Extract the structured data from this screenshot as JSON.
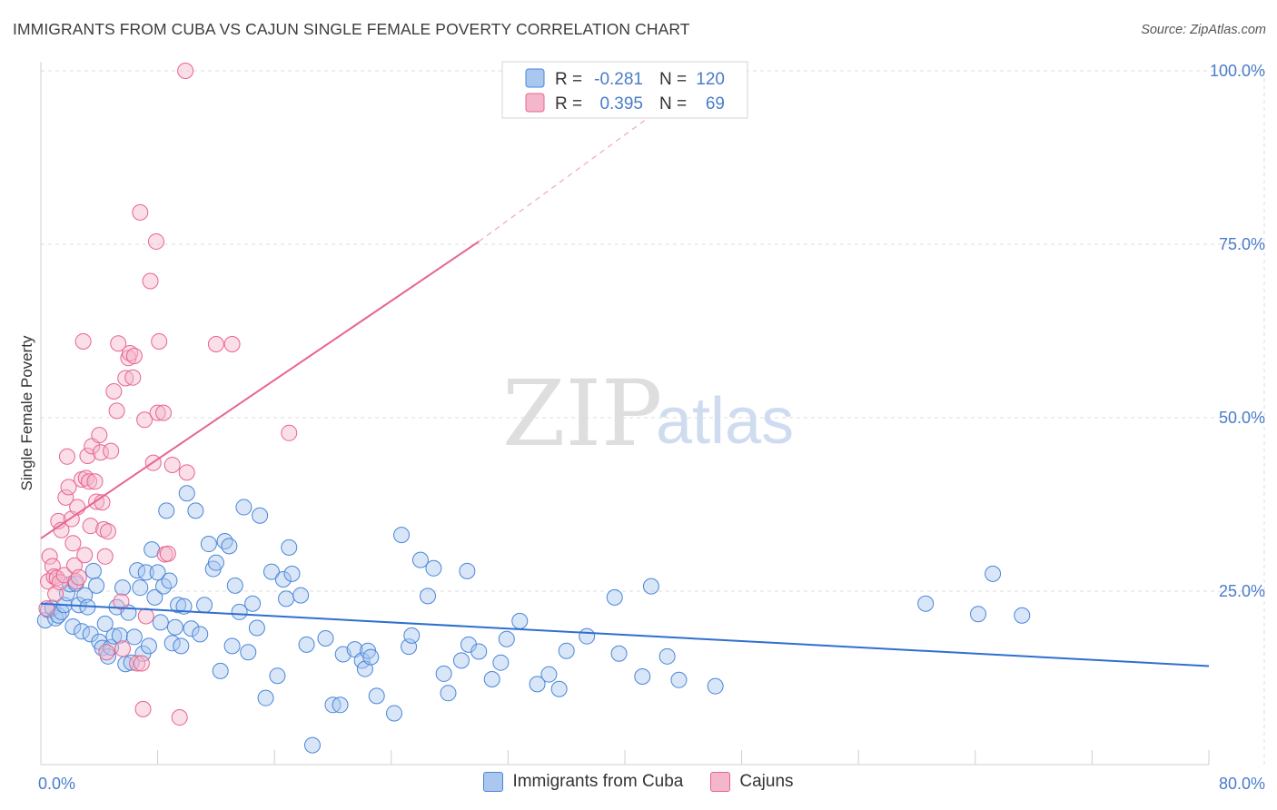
{
  "header": {
    "title": "IMMIGRANTS FROM CUBA VS CAJUN SINGLE FEMALE POVERTY CORRELATION CHART",
    "source": "Source: ZipAtlas.com"
  },
  "colors": {
    "blue": "#4a86d8",
    "blue_fill": "#a9c7ef",
    "pink": "#e8648e",
    "pink_fill": "#f4b6cb",
    "tick": "#4a7cc9",
    "grid": "#dddddd"
  },
  "watermark": {
    "part1": "ZIP",
    "part2": "atlas"
  },
  "chart_data": {
    "type": "scatter",
    "xlabel": "",
    "ylabel": "Single Female Poverty",
    "xlim": [
      0,
      80
    ],
    "ylim": [
      0,
      100
    ],
    "x_tick_labels": [
      "0.0%",
      "80.0%"
    ],
    "y_ticks": [
      25,
      50,
      75,
      100
    ],
    "y_tick_labels": [
      "25.0%",
      "50.0%",
      "75.0%",
      "100.0%"
    ],
    "grid": true,
    "legend_top": {
      "r_label": "R =",
      "n_label": "N =",
      "rows": [
        {
          "r": "-0.281",
          "n": "120"
        },
        {
          "r": "0.395",
          "n": "69"
        }
      ]
    },
    "series": [
      {
        "name": "Immigrants from Cuba",
        "trend": {
          "x": [
            0,
            80
          ],
          "y": [
            23.2,
            14.2
          ]
        },
        "points": [
          [
            0.3,
            20.8
          ],
          [
            0.5,
            22.3
          ],
          [
            0.8,
            22.6
          ],
          [
            1.0,
            21.1
          ],
          [
            1.2,
            21.5
          ],
          [
            1.4,
            22.0
          ],
          [
            1.6,
            23.0
          ],
          [
            1.8,
            24.7
          ],
          [
            2.0,
            26.0
          ],
          [
            2.2,
            19.9
          ],
          [
            2.4,
            26.1
          ],
          [
            2.6,
            23.0
          ],
          [
            2.8,
            19.2
          ],
          [
            3.0,
            24.4
          ],
          [
            3.2,
            22.7
          ],
          [
            3.4,
            18.8
          ],
          [
            3.6,
            27.9
          ],
          [
            3.8,
            25.8
          ],
          [
            4.0,
            17.7
          ],
          [
            4.2,
            16.8
          ],
          [
            4.4,
            20.3
          ],
          [
            4.6,
            15.6
          ],
          [
            4.8,
            16.9
          ],
          [
            5.0,
            18.5
          ],
          [
            5.2,
            22.7
          ],
          [
            5.4,
            18.6
          ],
          [
            5.6,
            25.5
          ],
          [
            5.8,
            14.5
          ],
          [
            6.0,
            21.9
          ],
          [
            6.2,
            14.7
          ],
          [
            6.4,
            18.4
          ],
          [
            6.6,
            28.0
          ],
          [
            6.8,
            25.5
          ],
          [
            7.0,
            16.0
          ],
          [
            7.2,
            27.7
          ],
          [
            7.4,
            17.1
          ],
          [
            7.6,
            31.0
          ],
          [
            7.8,
            24.1
          ],
          [
            8.0,
            27.7
          ],
          [
            8.2,
            20.5
          ],
          [
            8.4,
            25.7
          ],
          [
            8.6,
            36.6
          ],
          [
            8.8,
            26.5
          ],
          [
            9.0,
            17.5
          ],
          [
            9.2,
            19.8
          ],
          [
            9.4,
            23.0
          ],
          [
            9.6,
            17.1
          ],
          [
            9.8,
            22.8
          ],
          [
            10.0,
            39.1
          ],
          [
            10.3,
            19.6
          ],
          [
            10.6,
            36.6
          ],
          [
            10.9,
            18.8
          ],
          [
            11.2,
            23.0
          ],
          [
            11.5,
            31.8
          ],
          [
            11.8,
            28.2
          ],
          [
            12.0,
            29.1
          ],
          [
            12.3,
            13.5
          ],
          [
            12.6,
            32.2
          ],
          [
            12.9,
            31.5
          ],
          [
            13.1,
            17.1
          ],
          [
            13.3,
            25.8
          ],
          [
            13.6,
            22.0
          ],
          [
            13.9,
            37.1
          ],
          [
            14.2,
            16.2
          ],
          [
            14.5,
            23.2
          ],
          [
            14.8,
            19.7
          ],
          [
            15.0,
            35.9
          ],
          [
            15.4,
            9.6
          ],
          [
            15.8,
            27.8
          ],
          [
            16.2,
            12.8
          ],
          [
            16.6,
            26.7
          ],
          [
            16.8,
            23.9
          ],
          [
            17.0,
            31.3
          ],
          [
            17.2,
            27.5
          ],
          [
            17.8,
            24.4
          ],
          [
            18.2,
            17.3
          ],
          [
            18.6,
            2.8
          ],
          [
            19.5,
            18.2
          ],
          [
            20.0,
            8.6
          ],
          [
            20.5,
            8.6
          ],
          [
            20.7,
            15.9
          ],
          [
            21.5,
            16.6
          ],
          [
            22.0,
            15.0
          ],
          [
            22.2,
            13.8
          ],
          [
            22.4,
            16.4
          ],
          [
            22.6,
            15.5
          ],
          [
            23.0,
            9.9
          ],
          [
            24.2,
            7.4
          ],
          [
            24.7,
            33.1
          ],
          [
            25.2,
            17.0
          ],
          [
            25.4,
            18.6
          ],
          [
            26.0,
            29.5
          ],
          [
            26.5,
            24.3
          ],
          [
            26.9,
            28.3
          ],
          [
            27.6,
            13.1
          ],
          [
            27.9,
            10.3
          ],
          [
            28.8,
            15.0
          ],
          [
            29.2,
            27.9
          ],
          [
            29.3,
            17.3
          ],
          [
            30.0,
            16.3
          ],
          [
            30.9,
            12.3
          ],
          [
            31.5,
            14.7
          ],
          [
            31.9,
            18.1
          ],
          [
            32.8,
            20.7
          ],
          [
            34.0,
            11.6
          ],
          [
            34.8,
            13.0
          ],
          [
            35.5,
            10.9
          ],
          [
            36.0,
            16.4
          ],
          [
            37.4,
            18.5
          ],
          [
            39.3,
            24.1
          ],
          [
            39.6,
            16.0
          ],
          [
            41.2,
            12.7
          ],
          [
            41.8,
            25.7
          ],
          [
            42.9,
            15.6
          ],
          [
            43.7,
            12.2
          ],
          [
            46.2,
            11.3
          ],
          [
            60.6,
            23.2
          ],
          [
            64.2,
            21.7
          ],
          [
            65.2,
            27.5
          ],
          [
            67.2,
            21.5
          ]
        ]
      },
      {
        "name": "Cajuns",
        "trend": {
          "x": [
            0,
            30
          ],
          "y": [
            32.6,
            75.4
          ]
        },
        "trend_dashed": {
          "x": [
            30,
            46
          ],
          "y": [
            75.4,
            100
          ]
        },
        "points": [
          [
            0.4,
            22.5
          ],
          [
            0.5,
            26.4
          ],
          [
            0.6,
            30.0
          ],
          [
            0.8,
            28.6
          ],
          [
            0.9,
            27.1
          ],
          [
            1.0,
            24.6
          ],
          [
            1.1,
            26.9
          ],
          [
            1.2,
            35.1
          ],
          [
            1.3,
            26.3
          ],
          [
            1.4,
            33.8
          ],
          [
            1.6,
            27.3
          ],
          [
            1.7,
            38.5
          ],
          [
            1.8,
            44.4
          ],
          [
            1.9,
            40.0
          ],
          [
            2.1,
            35.4
          ],
          [
            2.2,
            31.9
          ],
          [
            2.3,
            28.7
          ],
          [
            2.4,
            26.4
          ],
          [
            2.5,
            37.1
          ],
          [
            2.6,
            27.0
          ],
          [
            2.8,
            41.1
          ],
          [
            2.9,
            61.0
          ],
          [
            3.0,
            30.2
          ],
          [
            3.1,
            41.3
          ],
          [
            3.2,
            44.5
          ],
          [
            3.3,
            40.8
          ],
          [
            3.4,
            34.4
          ],
          [
            3.5,
            45.9
          ],
          [
            3.7,
            40.8
          ],
          [
            3.8,
            37.9
          ],
          [
            4.0,
            47.5
          ],
          [
            4.1,
            45.0
          ],
          [
            4.2,
            37.8
          ],
          [
            4.3,
            33.9
          ],
          [
            4.4,
            30.0
          ],
          [
            4.5,
            16.2
          ],
          [
            4.6,
            33.6
          ],
          [
            4.8,
            45.2
          ],
          [
            5.0,
            53.8
          ],
          [
            5.2,
            51.0
          ],
          [
            5.3,
            60.7
          ],
          [
            5.5,
            23.5
          ],
          [
            5.6,
            16.7
          ],
          [
            5.8,
            55.7
          ],
          [
            6.0,
            58.6
          ],
          [
            6.1,
            59.3
          ],
          [
            6.3,
            55.8
          ],
          [
            6.4,
            58.9
          ],
          [
            6.6,
            14.6
          ],
          [
            6.8,
            79.6
          ],
          [
            6.9,
            14.6
          ],
          [
            7.0,
            8.0
          ],
          [
            7.1,
            49.7
          ],
          [
            7.2,
            21.4
          ],
          [
            7.5,
            69.7
          ],
          [
            7.7,
            43.5
          ],
          [
            7.9,
            75.4
          ],
          [
            8.0,
            50.7
          ],
          [
            8.1,
            61.0
          ],
          [
            8.4,
            50.7
          ],
          [
            8.5,
            30.3
          ],
          [
            8.7,
            30.4
          ],
          [
            9.0,
            43.2
          ],
          [
            9.5,
            6.8
          ],
          [
            9.9,
            100.0
          ],
          [
            10.0,
            42.1
          ],
          [
            12.0,
            60.6
          ],
          [
            13.1,
            60.6
          ],
          [
            17.0,
            47.8
          ]
        ]
      }
    ]
  },
  "bottom_legend": {
    "items": [
      {
        "label": "Immigrants from Cuba"
      },
      {
        "label": "Cajuns"
      }
    ]
  }
}
